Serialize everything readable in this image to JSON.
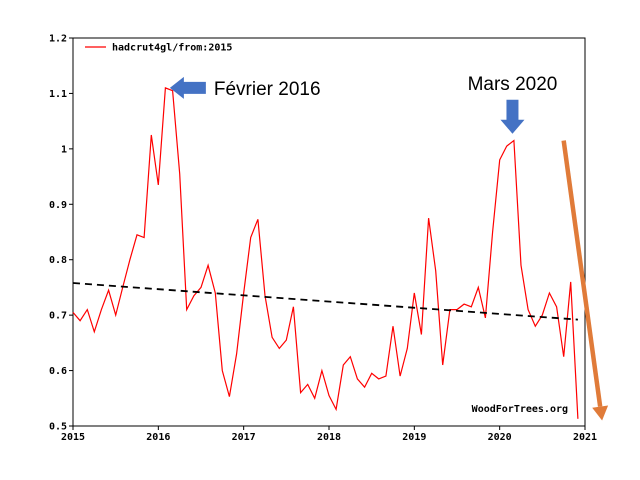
{
  "chart_data": {
    "type": "line",
    "title": "",
    "xlabel": "",
    "ylabel": "",
    "xlim": [
      2015,
      2021
    ],
    "ylim": [
      0.5,
      1.2
    ],
    "x_ticks": [
      "2015",
      "2016",
      "2017",
      "2018",
      "2019",
      "2020",
      "2021"
    ],
    "y_ticks": [
      "0.5",
      "0.6",
      "0.7",
      "0.8",
      "0.9",
      "1",
      "1.1",
      "1.2"
    ],
    "legend_position": "top-left",
    "credit": "WoodForTrees.org",
    "series": [
      {
        "name": "hadcrut4gl/from:2015",
        "color": "#ff0000",
        "x": [
          2015.0,
          2015.083,
          2015.167,
          2015.25,
          2015.333,
          2015.417,
          2015.5,
          2015.583,
          2015.667,
          2015.75,
          2015.833,
          2015.917,
          2016.0,
          2016.083,
          2016.167,
          2016.25,
          2016.333,
          2016.417,
          2016.5,
          2016.583,
          2016.667,
          2016.75,
          2016.833,
          2016.917,
          2017.0,
          2017.083,
          2017.167,
          2017.25,
          2017.333,
          2017.417,
          2017.5,
          2017.583,
          2017.667,
          2017.75,
          2017.833,
          2017.917,
          2018.0,
          2018.083,
          2018.167,
          2018.25,
          2018.333,
          2018.417,
          2018.5,
          2018.583,
          2018.667,
          2018.75,
          2018.833,
          2018.917,
          2019.0,
          2019.083,
          2019.167,
          2019.25,
          2019.333,
          2019.417,
          2019.5,
          2019.583,
          2019.667,
          2019.75,
          2019.833,
          2019.917,
          2020.0,
          2020.083,
          2020.167,
          2020.25,
          2020.333,
          2020.417,
          2020.5,
          2020.583,
          2020.667,
          2020.75,
          2020.833,
          2020.917
        ],
        "values": [
          0.705,
          0.69,
          0.71,
          0.67,
          0.71,
          0.745,
          0.7,
          0.75,
          0.8,
          0.845,
          0.84,
          1.025,
          0.935,
          1.11,
          1.105,
          0.955,
          0.71,
          0.735,
          0.75,
          0.79,
          0.74,
          0.6,
          0.553,
          0.63,
          0.74,
          0.84,
          0.873,
          0.735,
          0.66,
          0.64,
          0.655,
          0.715,
          0.56,
          0.575,
          0.55,
          0.6,
          0.555,
          0.53,
          0.61,
          0.625,
          0.585,
          0.57,
          0.595,
          0.585,
          0.59,
          0.68,
          0.59,
          0.64,
          0.74,
          0.665,
          0.875,
          0.78,
          0.61,
          0.71,
          0.71,
          0.72,
          0.715,
          0.75,
          0.695,
          0.85,
          0.98,
          1.005,
          1.015,
          0.79,
          0.71,
          0.68,
          0.7,
          0.74,
          0.715,
          0.625,
          0.76,
          0.513
        ]
      },
      {
        "name": "",
        "color": "#000000",
        "style": "dashed",
        "x": [
          2015.0,
          2020.917
        ],
        "values": [
          0.758,
          0.692
        ]
      }
    ],
    "annotations": [
      {
        "text": "Février 2016",
        "arrow_color": "#4472c4",
        "points_to": [
          2016.1,
          1.11
        ]
      },
      {
        "text": "Mars 2020",
        "arrow_color": "#4472c4",
        "points_to": [
          2020.15,
          1.02
        ]
      },
      {
        "text": "",
        "arrow_color": "#e07b39",
        "from": [
          2020.75,
          1.015
        ],
        "to": [
          2021.2,
          0.51
        ]
      }
    ]
  }
}
